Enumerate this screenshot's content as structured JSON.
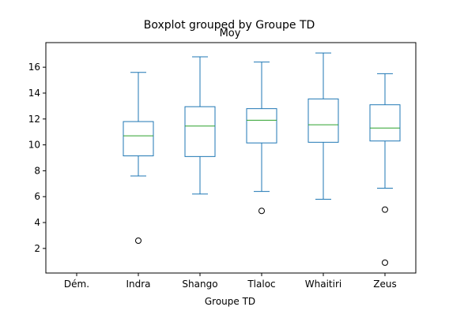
{
  "chart_data": {
    "type": "boxplot",
    "title": "Boxplot grouped by Groupe TD",
    "subtitle": "Moy",
    "xlabel": "Groupe TD",
    "ylabel": "",
    "ylim": [
      0.1,
      17.9
    ],
    "yticks": [
      2,
      4,
      6,
      8,
      10,
      12,
      14,
      16
    ],
    "grid": false,
    "categories": [
      "Dém.",
      "Indra",
      "Shango",
      "Tlaloc",
      "Whaitiri",
      "Zeus"
    ],
    "boxes": [
      {
        "category": "Dém.",
        "empty": true
      },
      {
        "category": "Indra",
        "whisker_low": 7.6,
        "q1": 9.15,
        "median": 10.7,
        "q3": 11.8,
        "whisker_high": 15.6,
        "outliers": [
          2.6
        ]
      },
      {
        "category": "Shango",
        "whisker_low": 6.2,
        "q1": 9.1,
        "median": 11.45,
        "q3": 12.95,
        "whisker_high": 16.8,
        "outliers": []
      },
      {
        "category": "Tlaloc",
        "whisker_low": 6.4,
        "q1": 10.15,
        "median": 11.9,
        "q3": 12.8,
        "whisker_high": 16.4,
        "outliers": [
          4.9
        ]
      },
      {
        "category": "Whaitiri",
        "whisker_low": 5.8,
        "q1": 10.2,
        "median": 11.55,
        "q3": 13.55,
        "whisker_high": 17.1,
        "outliers": []
      },
      {
        "category": "Zeus",
        "whisker_low": 6.65,
        "q1": 10.3,
        "median": 11.3,
        "q3": 13.1,
        "whisker_high": 15.5,
        "outliers": [
          5.0,
          0.9
        ]
      }
    ],
    "colors": {
      "box": "#1f77b4",
      "median": "#2ca02c",
      "outlier": "#000000",
      "axes": "#000000"
    }
  }
}
